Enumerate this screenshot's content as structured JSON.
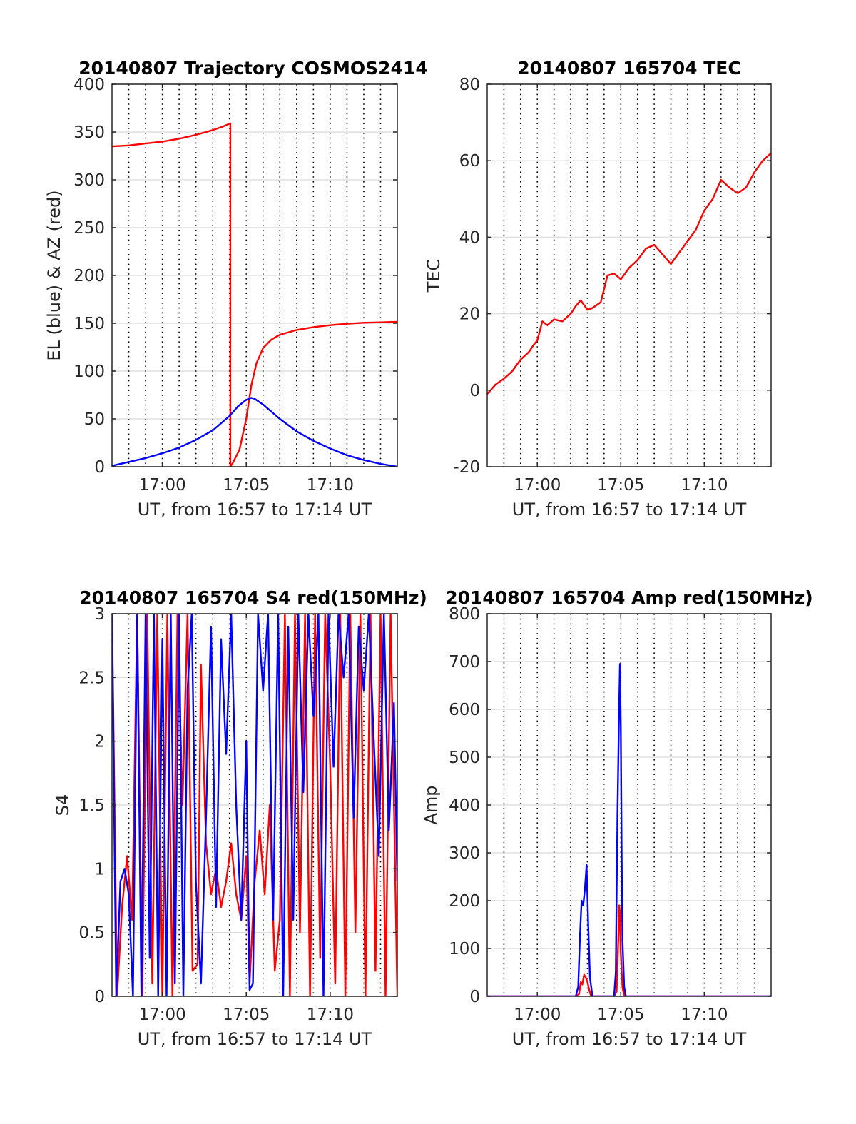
{
  "colors": {
    "red": "#ff0000",
    "blue": "#0000ff",
    "axis": "#262626",
    "grid_major": "#e0e0e0",
    "grid_minor": "#000000"
  },
  "chart_data": [
    {
      "type": "line",
      "title": "20140807 Trajectory COSMOS2414",
      "xlabel": "UT, from 16:57 to 17:14 UT",
      "ylabel": "EL (blue) & AZ (red)",
      "xlim": [
        0,
        17
      ],
      "ylim": [
        0,
        400
      ],
      "xticks": [
        {
          "value": 3,
          "label": "17:00"
        },
        {
          "value": 8,
          "label": "17:05"
        },
        {
          "value": 13,
          "label": "17:10"
        }
      ],
      "yticks": [
        {
          "value": 0,
          "label": "0"
        },
        {
          "value": 50,
          "label": "50"
        },
        {
          "value": 100,
          "label": "100"
        },
        {
          "value": 150,
          "label": "150"
        },
        {
          "value": 200,
          "label": "200"
        },
        {
          "value": 250,
          "label": "250"
        },
        {
          "value": 300,
          "label": "300"
        },
        {
          "value": 350,
          "label": "350"
        },
        {
          "value": 400,
          "label": "400"
        }
      ],
      "grid": "major horizontal, minor vertical dotted",
      "series": [
        {
          "color": "#ff0000",
          "x": [
            0,
            1,
            2,
            3,
            4,
            5,
            6,
            6.5,
            7.05,
            7.05,
            7.2,
            7.6,
            8.0,
            8.3,
            8.6,
            9.0,
            9.5,
            10,
            11,
            12,
            13,
            14,
            15,
            16,
            17
          ],
          "y": [
            335,
            336,
            338,
            340,
            343,
            347,
            352,
            355,
            359,
            0,
            4,
            18,
            50,
            85,
            108,
            124,
            133,
            138,
            143,
            146,
            148,
            149.5,
            150.5,
            151,
            151.5
          ]
        },
        {
          "color": "#0000ff",
          "x": [
            0,
            1,
            2,
            3,
            4,
            5,
            6,
            7,
            7.5,
            8,
            8.3,
            8.5,
            9,
            10,
            11,
            12,
            13,
            14,
            15,
            16,
            17
          ],
          "y": [
            1,
            5,
            9,
            14,
            20,
            28,
            38,
            53,
            63,
            70,
            72,
            71,
            65,
            50,
            37,
            27,
            19,
            12,
            7,
            3,
            0
          ]
        }
      ]
    },
    {
      "type": "line",
      "title": "20140807 165704 TEC",
      "xlabel": "UT, from 16:57 to 17:14 UT",
      "ylabel": "TEC",
      "xlim": [
        0,
        17
      ],
      "ylim": [
        -20,
        80
      ],
      "xticks": [
        {
          "value": 3,
          "label": "17:00"
        },
        {
          "value": 8,
          "label": "17:05"
        },
        {
          "value": 13,
          "label": "17:10"
        }
      ],
      "yticks": [
        {
          "value": -20,
          "label": "-20"
        },
        {
          "value": 0,
          "label": "0"
        },
        {
          "value": 20,
          "label": "20"
        },
        {
          "value": 40,
          "label": "40"
        },
        {
          "value": 60,
          "label": "60"
        },
        {
          "value": 80,
          "label": "80"
        }
      ],
      "grid": "major horizontal, minor vertical dotted",
      "series": [
        {
          "color": "#ff0000",
          "x": [
            0,
            0.5,
            1,
            1.5,
            2,
            2.5,
            2.8,
            3,
            3.3,
            3.6,
            4,
            4.5,
            5,
            5.3,
            5.6,
            6,
            6.3,
            6.8,
            7.2,
            7.6,
            8,
            8.5,
            9,
            9.5,
            10,
            10.5,
            11,
            11.5,
            12,
            12.5,
            13,
            13.5,
            14,
            14.5,
            15,
            15.5,
            16,
            16.5,
            17
          ],
          "y": [
            -1,
            1.5,
            3,
            5,
            8,
            10,
            12,
            13,
            18,
            17,
            18.5,
            18,
            20,
            22,
            23.5,
            21,
            21.5,
            23,
            30,
            30.5,
            29,
            32,
            34,
            37,
            38,
            35.5,
            33,
            36,
            39,
            42,
            47,
            50,
            55,
            53,
            51.5,
            53,
            57,
            60,
            62
          ]
        }
      ]
    },
    {
      "type": "line",
      "title": "20140807 165704 S4 red(150MHz)",
      "xlabel": "UT, from 16:57 to 17:14 UT",
      "ylabel": "S4",
      "xlim": [
        0,
        17
      ],
      "ylim": [
        0,
        3
      ],
      "xticks": [
        {
          "value": 3,
          "label": "17:00"
        },
        {
          "value": 8,
          "label": "17:05"
        },
        {
          "value": 13,
          "label": "17:10"
        }
      ],
      "yticks": [
        {
          "value": 0,
          "label": "0"
        },
        {
          "value": 0.5,
          "label": "0.5"
        },
        {
          "value": 1,
          "label": "1"
        },
        {
          "value": 1.5,
          "label": "1.5"
        },
        {
          "value": 2,
          "label": "2"
        },
        {
          "value": 2.5,
          "label": "2.5"
        },
        {
          "value": 3,
          "label": "3"
        }
      ],
      "grid": "major horizontal, minor vertical dotted",
      "series": [
        {
          "color": "#ff0000",
          "x": [
            0,
            0.3,
            0.6,
            0.9,
            1.2,
            1.5,
            1.8,
            2.1,
            2.4,
            2.7,
            3.0,
            3.3,
            3.6,
            3.9,
            4.2,
            4.5,
            4.8,
            5.1,
            5.3,
            5.6,
            5.9,
            6.2,
            6.5,
            6.8,
            7.1,
            7.4,
            7.7,
            8.0,
            8.2,
            8.5,
            8.8,
            9.1,
            9.4,
            9.7,
            10.0,
            10.3,
            10.6,
            10.9,
            11.2,
            11.5,
            11.8,
            12.1,
            12.4,
            12.7,
            13.0,
            13.3,
            13.6,
            13.9,
            14.2,
            14.5,
            14.8,
            15.1,
            15.4,
            15.7,
            16.0,
            16.3,
            16.6,
            17.0
          ],
          "y": [
            3,
            0,
            0.7,
            1.1,
            0.6,
            3,
            0,
            3,
            0.1,
            3,
            0,
            3,
            0,
            3,
            1.5,
            3,
            0.2,
            0.25,
            2.6,
            1.2,
            0.8,
            1.0,
            0.7,
            0.9,
            1.2,
            0.8,
            0.6,
            1.1,
            0.1,
            0.9,
            1.3,
            0.8,
            1.5,
            0.2,
            0.6,
            3,
            0,
            3,
            0.5,
            3,
            0,
            3,
            0.3,
            3,
            1.8,
            0.1,
            3,
            0,
            3,
            0.5,
            3,
            0,
            3,
            0.2,
            3,
            0,
            3,
            0
          ]
        },
        {
          "color": "#0000ff",
          "x": [
            0,
            0.25,
            0.5,
            0.75,
            1.0,
            1.25,
            1.5,
            1.75,
            2.0,
            2.25,
            2.5,
            2.75,
            3.0,
            3.25,
            3.5,
            3.75,
            4.0,
            4.25,
            4.5,
            4.75,
            5.0,
            5.3,
            5.6,
            5.9,
            6.2,
            6.5,
            6.8,
            7.1,
            7.4,
            7.7,
            8.0,
            8.2,
            8.4,
            8.7,
            9.0,
            9.3,
            9.6,
            9.9,
            10.2,
            10.5,
            10.8,
            11.1,
            11.4,
            11.7,
            12.0,
            12.3,
            12.6,
            12.9,
            13.2,
            13.5,
            13.8,
            14.1,
            14.4,
            14.7,
            15.0,
            15.3,
            15.6,
            15.9,
            16.2,
            16.5,
            16.8,
            17.0
          ],
          "y": [
            3,
            0,
            0.9,
            1.0,
            0.8,
            0,
            3,
            0,
            3,
            0.3,
            3,
            0,
            2.8,
            0,
            3,
            0.1,
            3,
            0,
            2.4,
            3,
            0.9,
            0.1,
            1.4,
            2.9,
            0.7,
            2.8,
            1.9,
            3,
            1.5,
            0.6,
            2.0,
            0.05,
            0.1,
            3,
            2.4,
            3,
            0.6,
            3,
            0,
            2.9,
            0.6,
            3,
            1.6,
            3,
            2.2,
            3,
            0,
            3,
            1.8,
            3,
            2.5,
            3,
            1.4,
            2.9,
            2.4,
            3,
            2.0,
            1.1,
            3,
            1.3,
            2.3,
            0.9
          ]
        }
      ]
    },
    {
      "type": "line",
      "title": "20140807 165704 Amp red(150MHz)",
      "xlabel": "UT, from 16:57 to 17:14 UT",
      "ylabel": "Amp",
      "xlim": [
        0,
        17
      ],
      "ylim": [
        0,
        800
      ],
      "xticks": [
        {
          "value": 3,
          "label": "17:00"
        },
        {
          "value": 8,
          "label": "17:05"
        },
        {
          "value": 13,
          "label": "17:10"
        }
      ],
      "yticks": [
        {
          "value": 0,
          "label": "0"
        },
        {
          "value": 100,
          "label": "100"
        },
        {
          "value": 200,
          "label": "200"
        },
        {
          "value": 300,
          "label": "300"
        },
        {
          "value": 400,
          "label": "400"
        },
        {
          "value": 500,
          "label": "500"
        },
        {
          "value": 600,
          "label": "600"
        },
        {
          "value": 700,
          "label": "700"
        },
        {
          "value": 800,
          "label": "800"
        }
      ],
      "grid": "major horizontal, minor vertical dotted",
      "series": [
        {
          "color": "#ff0000",
          "x": [
            0,
            5.3,
            5.5,
            5.6,
            5.7,
            5.8,
            5.9,
            6.0,
            6.1,
            6.2,
            6.4,
            7.6,
            7.75,
            7.85,
            7.9,
            7.95,
            8.0,
            8.1,
            8.2,
            17
          ],
          "y": [
            0,
            0,
            5,
            30,
            25,
            45,
            40,
            30,
            15,
            2,
            0,
            0,
            10,
            120,
            190,
            170,
            90,
            20,
            0,
            0
          ]
        },
        {
          "color": "#0000ff",
          "x": [
            0,
            5.3,
            5.45,
            5.55,
            5.65,
            5.75,
            5.85,
            5.95,
            6.05,
            6.15,
            6.3,
            7.6,
            7.7,
            7.8,
            7.9,
            7.95,
            8.0,
            8.05,
            8.1,
            8.2,
            8.3,
            17
          ],
          "y": [
            0,
            0,
            20,
            120,
            200,
            190,
            225,
            275,
            150,
            40,
            0,
            0,
            50,
            380,
            610,
            695,
            560,
            300,
            120,
            20,
            0,
            0
          ]
        }
      ]
    }
  ]
}
